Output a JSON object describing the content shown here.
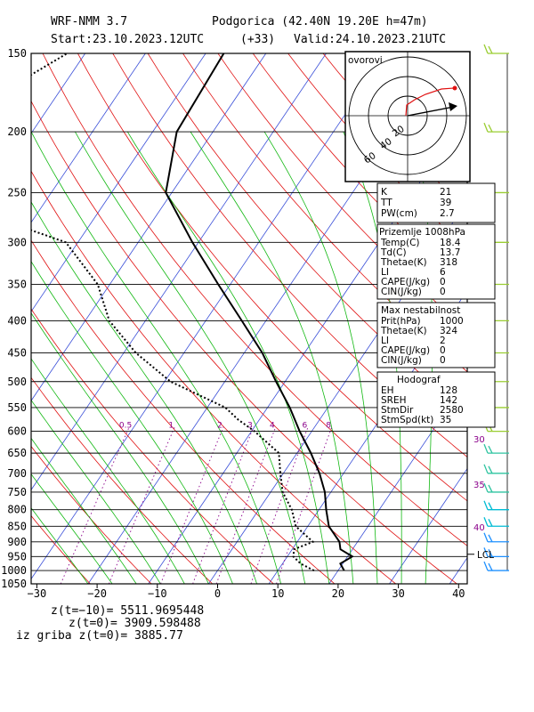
{
  "header": {
    "model": "WRF-NMM 3.7",
    "station": "Podgorica (42.40N 19.20E  h=47m)",
    "start": "Start:23.10.2023.",
    "start_hour": "12UTC",
    "lead": "(+33)",
    "valid": "Valid:24.10.2023.",
    "valid_hour": "21UTC"
  },
  "chart_data": {
    "type": "line",
    "chart_kind": "skew-T log-p diagram",
    "y_scale": "log pressure (hPa)",
    "pressure_ticks": [
      150,
      200,
      250,
      300,
      350,
      400,
      450,
      500,
      550,
      600,
      650,
      700,
      750,
      800,
      850,
      900,
      950,
      1000,
      1050
    ],
    "pressure_tick_labels": [
      "150",
      "200",
      "250",
      "300",
      "350",
      "400",
      "450",
      "500",
      "550",
      "600",
      "650",
      "700",
      "750",
      "800",
      "850",
      "900",
      "950",
      "1000",
      "1050"
    ],
    "temperature_ticks": [
      -30,
      -20,
      -10,
      0,
      10,
      20,
      30,
      40
    ],
    "temperature_tick_labels": [
      "−30",
      "−20",
      "−10",
      "0",
      "10",
      "20",
      "30",
      "40"
    ],
    "xlim": [
      -30,
      42
    ],
    "ylim": [
      1050,
      150
    ],
    "grid": true,
    "mixing_ratio_labels": [
      "0.5",
      "1",
      "2",
      "3",
      "4",
      "6",
      "8"
    ],
    "mixing_ratio_values": [
      0.5,
      1,
      2,
      3,
      4,
      6,
      8
    ],
    "speed_labels": [
      "30",
      "35",
      "40"
    ],
    "lcl_label": "LCL",
    "lcl_pressure": 942,
    "series": [
      {
        "kind": "temperature",
        "style": "solid",
        "points": [
          {
            "p": 1000,
            "t": 21.0
          },
          {
            "p": 975,
            "t": 19.6
          },
          {
            "p": 950,
            "t": 20.8
          },
          {
            "p": 925,
            "t": 18.0
          },
          {
            "p": 900,
            "t": 17.0
          },
          {
            "p": 850,
            "t": 13.5
          },
          {
            "p": 800,
            "t": 11.2
          },
          {
            "p": 750,
            "t": 9.0
          },
          {
            "p": 700,
            "t": 6.0
          },
          {
            "p": 650,
            "t": 2.3
          },
          {
            "p": 600,
            "t": -2.0
          },
          {
            "p": 550,
            "t": -6.3
          },
          {
            "p": 500,
            "t": -11.5
          },
          {
            "p": 450,
            "t": -17.0
          },
          {
            "p": 400,
            "t": -24.0
          },
          {
            "p": 350,
            "t": -32.0
          },
          {
            "p": 300,
            "t": -41.0
          },
          {
            "p": 250,
            "t": -51.0
          },
          {
            "p": 200,
            "t": -56.0
          },
          {
            "p": 150,
            "t": -57.0
          }
        ]
      },
      {
        "kind": "dewpoint",
        "style": "dotted",
        "points": [
          {
            "p": 1000,
            "t": 16.0
          },
          {
            "p": 975,
            "t": 13.0
          },
          {
            "p": 950,
            "t": 11.0
          },
          {
            "p": 925,
            "t": 10.3
          },
          {
            "p": 900,
            "t": 12.6
          },
          {
            "p": 850,
            "t": 8.0
          },
          {
            "p": 800,
            "t": 5.5
          },
          {
            "p": 750,
            "t": 2.0
          },
          {
            "p": 700,
            "t": -0.5
          },
          {
            "p": 650,
            "t": -3.0
          },
          {
            "p": 600,
            "t": -9.5
          },
          {
            "p": 575,
            "t": -13.5
          },
          {
            "p": 550,
            "t": -17.0
          },
          {
            "p": 500,
            "t": -29.0
          },
          {
            "p": 450,
            "t": -38.0
          },
          {
            "p": 400,
            "t": -46.0
          },
          {
            "p": 350,
            "t": -52.0
          },
          {
            "p": 300,
            "t": -62.0
          },
          {
            "p": 280,
            "t": -73.0
          },
          {
            "p": 250,
            "t": -87.0
          },
          {
            "p": 200,
            "t": -92.0
          },
          {
            "p": 175,
            "t": -90.0
          },
          {
            "p": 150,
            "t": -83.0
          }
        ]
      }
    ],
    "indices": [
      {
        "label": "K",
        "value": "21"
      },
      {
        "label": "TT",
        "value": "39"
      },
      {
        "label": "PW(cm)",
        "value": "2.7"
      }
    ],
    "surface_box": {
      "title": "Prizemlje 1008hPa",
      "rows": [
        {
          "label": "Temp(C)",
          "value": "18.4"
        },
        {
          "label": "Td(C)",
          "value": "13.7"
        },
        {
          "label": "Thetae(K)",
          "value": "318"
        },
        {
          "label": "LI",
          "value": "6"
        },
        {
          "label": "CAPE(J/kg)",
          "value": "0"
        },
        {
          "label": "CIN(J/kg)",
          "value": "0"
        }
      ]
    },
    "unstable_box": {
      "title": "Max nestabilnost",
      "rows": [
        {
          "label": "Prit(hPa)",
          "value": "1000"
        },
        {
          "label": "Thetae(K)",
          "value": "324"
        },
        {
          "label": "LI",
          "value": "2"
        },
        {
          "label": "CAPE(J/kg)",
          "value": "0"
        },
        {
          "label": "CIN(J/kg)",
          "value": "0"
        }
      ]
    },
    "hodograph_box": {
      "title": "Hodograf",
      "rows": [
        {
          "label": "EH",
          "value": "128"
        },
        {
          "label": "SREH",
          "value": "142"
        },
        {
          "label": "StmDir",
          "value": "2580"
        },
        {
          "label": "StmSpd(kt)",
          "value": "35"
        }
      ]
    },
    "hodograph_inset": {
      "title": "ovorovi",
      "ring_labels": [
        "20",
        "40",
        "60"
      ]
    },
    "footer": [
      "z(t=−10)=  5511.9695448",
      "z(t=0)=   3909.598488",
      "iz griba  z(t=0)=  3885.77"
    ]
  }
}
